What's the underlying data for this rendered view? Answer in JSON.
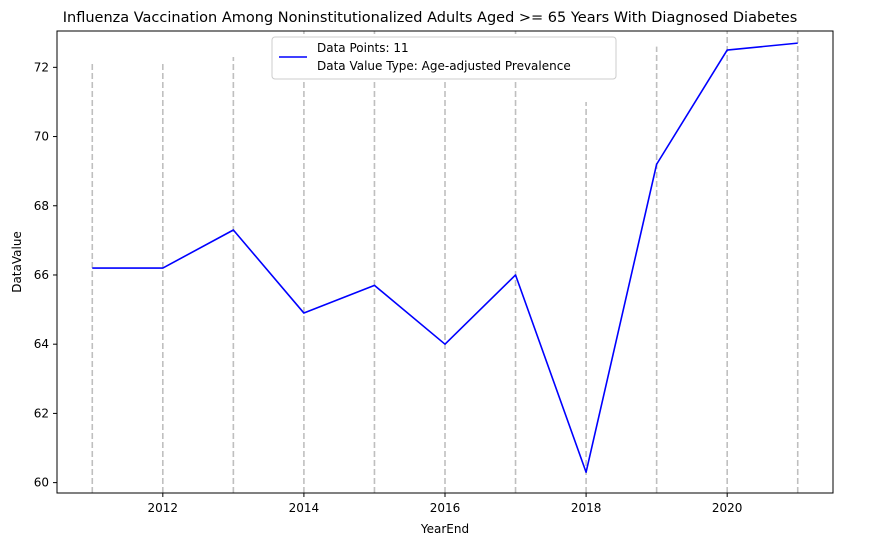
{
  "chart_data": {
    "type": "line",
    "title": "Influenza Vaccination Among Noninstitutionalized Adults Aged >= 65 Years With Diagnosed Diabetes",
    "xlabel": "YearEnd",
    "ylabel": "DataValue",
    "x": [
      2011,
      2012,
      2013,
      2014,
      2015,
      2016,
      2017,
      2018,
      2019,
      2020,
      2021
    ],
    "series": [
      {
        "name": "Data Value Type: Age-adjusted Prevalence",
        "values": [
          66.2,
          66.2,
          67.3,
          64.9,
          65.7,
          64.0,
          66.0,
          60.3,
          69.2,
          72.5,
          72.7
        ]
      }
    ],
    "xlim": [
      2010.5,
      2021.5
    ],
    "ylim": [
      59.7,
      73.05
    ],
    "x_ticks": [
      2012,
      2014,
      2016,
      2018,
      2020
    ],
    "y_ticks": [
      60,
      62,
      64,
      66,
      68,
      70,
      72
    ],
    "vlines": [
      {
        "x": 2011,
        "ymax": 72.1
      },
      {
        "x": 2012,
        "ymax": 72.1
      },
      {
        "x": 2013,
        "ymax": 72.3
      },
      {
        "x": 2014,
        "ymax": 73.05
      },
      {
        "x": 2015,
        "ymax": 73.05
      },
      {
        "x": 2016,
        "ymax": 71.7
      },
      {
        "x": 2017,
        "ymax": 73.05
      },
      {
        "x": 2018,
        "ymax": 71.0
      },
      {
        "x": 2019,
        "ymax": 72.6
      },
      {
        "x": 2020,
        "ymax": 73.05
      },
      {
        "x": 2021,
        "ymax": 73.05
      }
    ],
    "legend": {
      "position": "top-center",
      "lines": [
        "Data Points: 11",
        "Data Value Type: Age-adjusted Prevalence"
      ]
    },
    "colors": {
      "line": "#0000ff",
      "vline": "#bfbfbf"
    },
    "grid": false
  }
}
